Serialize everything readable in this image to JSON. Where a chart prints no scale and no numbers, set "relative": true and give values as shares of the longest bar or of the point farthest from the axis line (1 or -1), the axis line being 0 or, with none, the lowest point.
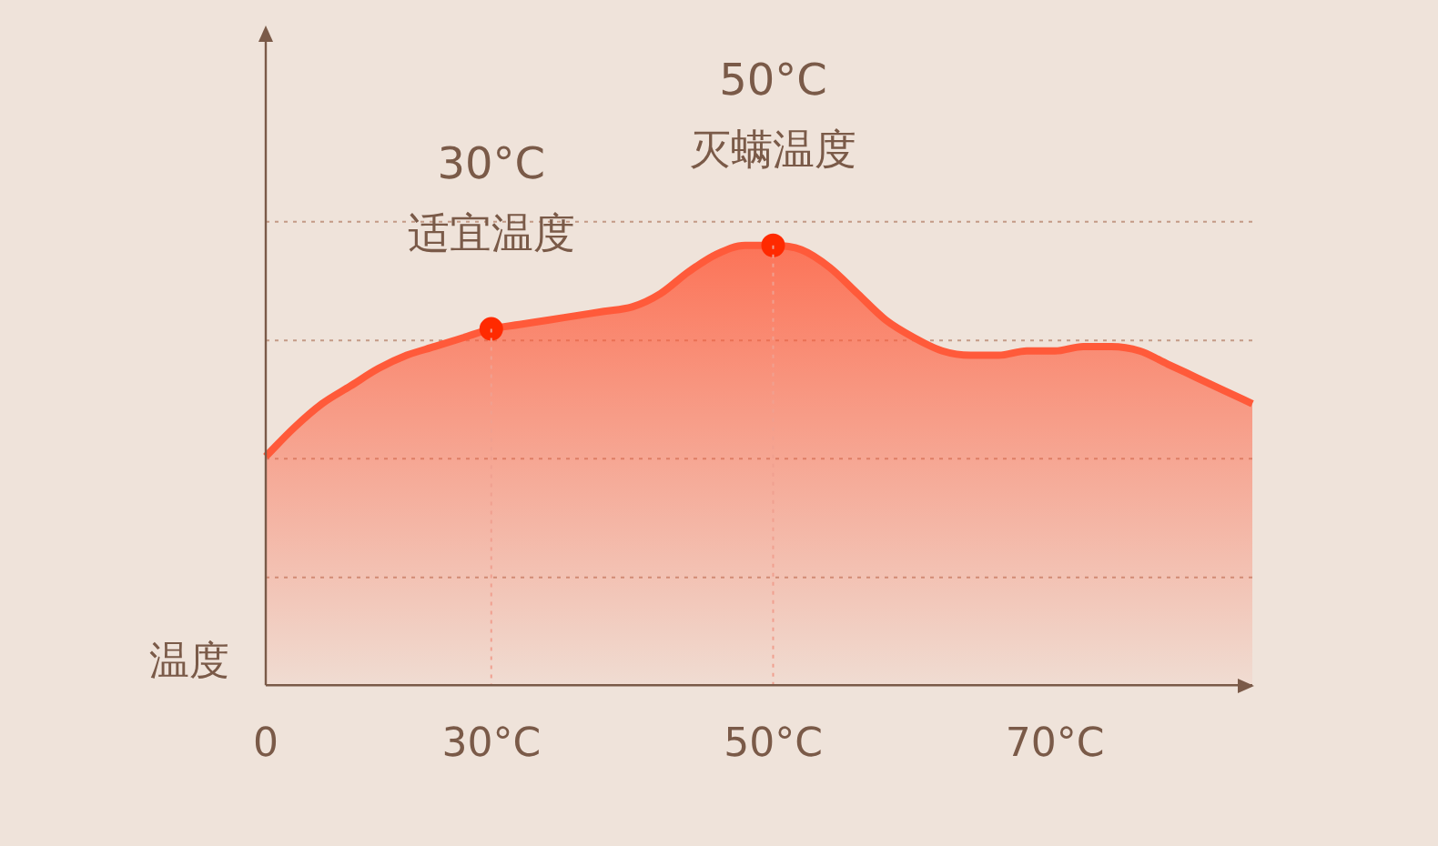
{
  "chart_data": {
    "type": "area",
    "relative": true,
    "ylabel": "温度",
    "legend": false,
    "categories": [
      "0",
      null,
      null,
      null,
      null,
      null,
      null,
      null,
      "30°C",
      null,
      null,
      null,
      null,
      null,
      null,
      null,
      null,
      null,
      "50°C",
      null,
      null,
      null,
      null,
      null,
      null,
      null,
      null,
      null,
      "70°C",
      null,
      null,
      null,
      null,
      null,
      null,
      null
    ],
    "series": [
      {
        "color": "#ff5a3a",
        "values": [
          0.52,
          0.585,
          0.64,
          0.68,
          0.72,
          0.75,
          0.77,
          0.79,
          0.81,
          0.82,
          0.83,
          0.84,
          0.85,
          0.86,
          0.89,
          0.94,
          0.98,
          1.0,
          1.0,
          0.99,
          0.95,
          0.89,
          0.83,
          0.79,
          0.76,
          0.75,
          0.75,
          0.76,
          0.76,
          0.77,
          0.77,
          0.76,
          0.73,
          0.7,
          0.67,
          0.64
        ]
      },
      {
        "type": "scatter",
        "color": "#ff2a00",
        "x": [
          "30°C",
          "50°C"
        ],
        "values": [
          0.81,
          1.0
        ]
      }
    ],
    "ref_lines": [
      {
        "axis": "y",
        "value": 1.054,
        "color": "#c49a86",
        "line_style": "dotted"
      },
      {
        "axis": "y",
        "value": 0.784,
        "color": "#c49a86",
        "line_style": "dotted"
      },
      {
        "axis": "y",
        "value": 0.515,
        "color": "#c49a86",
        "line_style": "dotted"
      },
      {
        "axis": "y",
        "value": 0.245,
        "color": "#c49a86",
        "line_style": "dotted"
      }
    ],
    "annotations": [
      {
        "text": "30°C\n适宜温度",
        "x": "30°C",
        "y": 0.81
      },
      {
        "text": "50°C\n灭螨温度",
        "x": "50°C",
        "y": 1.0
      }
    ]
  }
}
